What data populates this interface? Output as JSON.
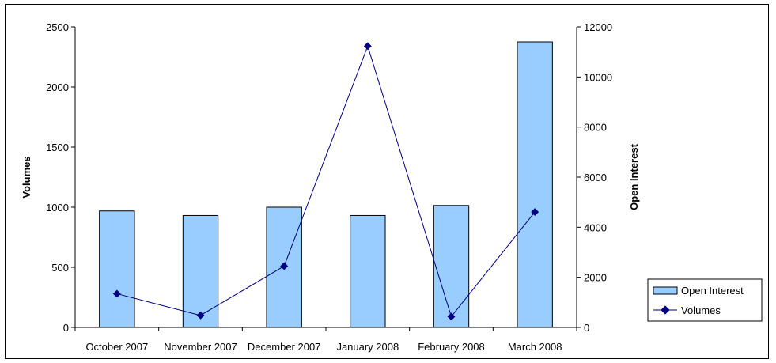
{
  "chart_data": {
    "type": "bar",
    "categories": [
      "October 2007",
      "November 2007",
      "December 2007",
      "January 2008",
      "February 2008",
      "March 2008"
    ],
    "series": [
      {
        "name": "Open Interest",
        "kind": "bar",
        "axis": "right",
        "values": [
          4650,
          4470,
          4800,
          4470,
          4870,
          11400
        ],
        "color": "#99ccff"
      },
      {
        "name": "Volumes",
        "kind": "line",
        "axis": "left",
        "values": [
          280,
          100,
          510,
          2340,
          90,
          960
        ],
        "color": "#000080"
      }
    ],
    "ylabel": "Volumes",
    "y2label": "Open Interest",
    "ylim": [
      0,
      2500
    ],
    "y2lim": [
      0,
      12000
    ],
    "yticks": [
      0,
      500,
      1000,
      1500,
      2000,
      2500
    ],
    "y2ticks": [
      0,
      2000,
      4000,
      6000,
      8000,
      10000,
      12000
    ],
    "grid": false,
    "legend_position": "right"
  }
}
